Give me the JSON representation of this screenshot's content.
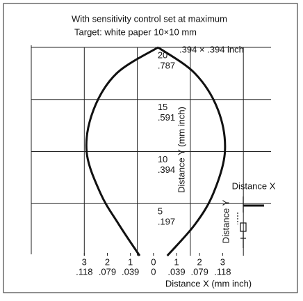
{
  "chart_data": {
    "type": "line",
    "title": "With sensitivity control set at maximum",
    "subtitle": "Target: white paper 10×10 mm",
    "annotation": ".394 × .394 inch",
    "xlabel": "Distance X (mm inch)",
    "ylabel": "Distance Y (mm inch)",
    "inset_xlabel": "Distance X",
    "inset_ylabel": "Distance Y",
    "xlim": [
      -5.3,
      5.1
    ],
    "ylim": [
      0,
      20
    ],
    "xticks": [
      {
        "value": -3,
        "label": "3",
        "inch": ".118"
      },
      {
        "value": -2,
        "label": "2",
        "inch": ".079"
      },
      {
        "value": -1,
        "label": "1",
        "inch": ".039"
      },
      {
        "value": 0,
        "label": "0",
        "inch": "0"
      },
      {
        "value": 1,
        "label": "1",
        "inch": ".039"
      },
      {
        "value": 2,
        "label": "2",
        "inch": ".079"
      },
      {
        "value": 3,
        "label": "3",
        "inch": ".118"
      }
    ],
    "yticks": [
      {
        "value": 5,
        "label": "5",
        "inch": ".197"
      },
      {
        "value": 10,
        "label": "10",
        "inch": ".394"
      },
      {
        "value": 15,
        "label": "15",
        "inch": ".591"
      },
      {
        "value": 20,
        "label": "20",
        "inch": ".787"
      }
    ],
    "xgrid": [
      -3,
      -0.7,
      1.6,
      3.9
    ],
    "grid": true,
    "series": [
      {
        "color": "#111111",
        "x": [
          -0.6,
          -1.5,
          -2.3,
          -2.9,
          -2.6,
          -1.6,
          0.2
        ],
        "values": [
          0,
          3,
          6,
          10,
          14,
          17.5,
          20
        ]
      },
      {
        "color": "#111111",
        "x": [
          0.6,
          1.8,
          2.6,
          3.1,
          2.8,
          1.8,
          0.2
        ],
        "values": [
          0,
          3,
          6,
          10,
          14,
          17.5,
          20
        ]
      }
    ]
  }
}
